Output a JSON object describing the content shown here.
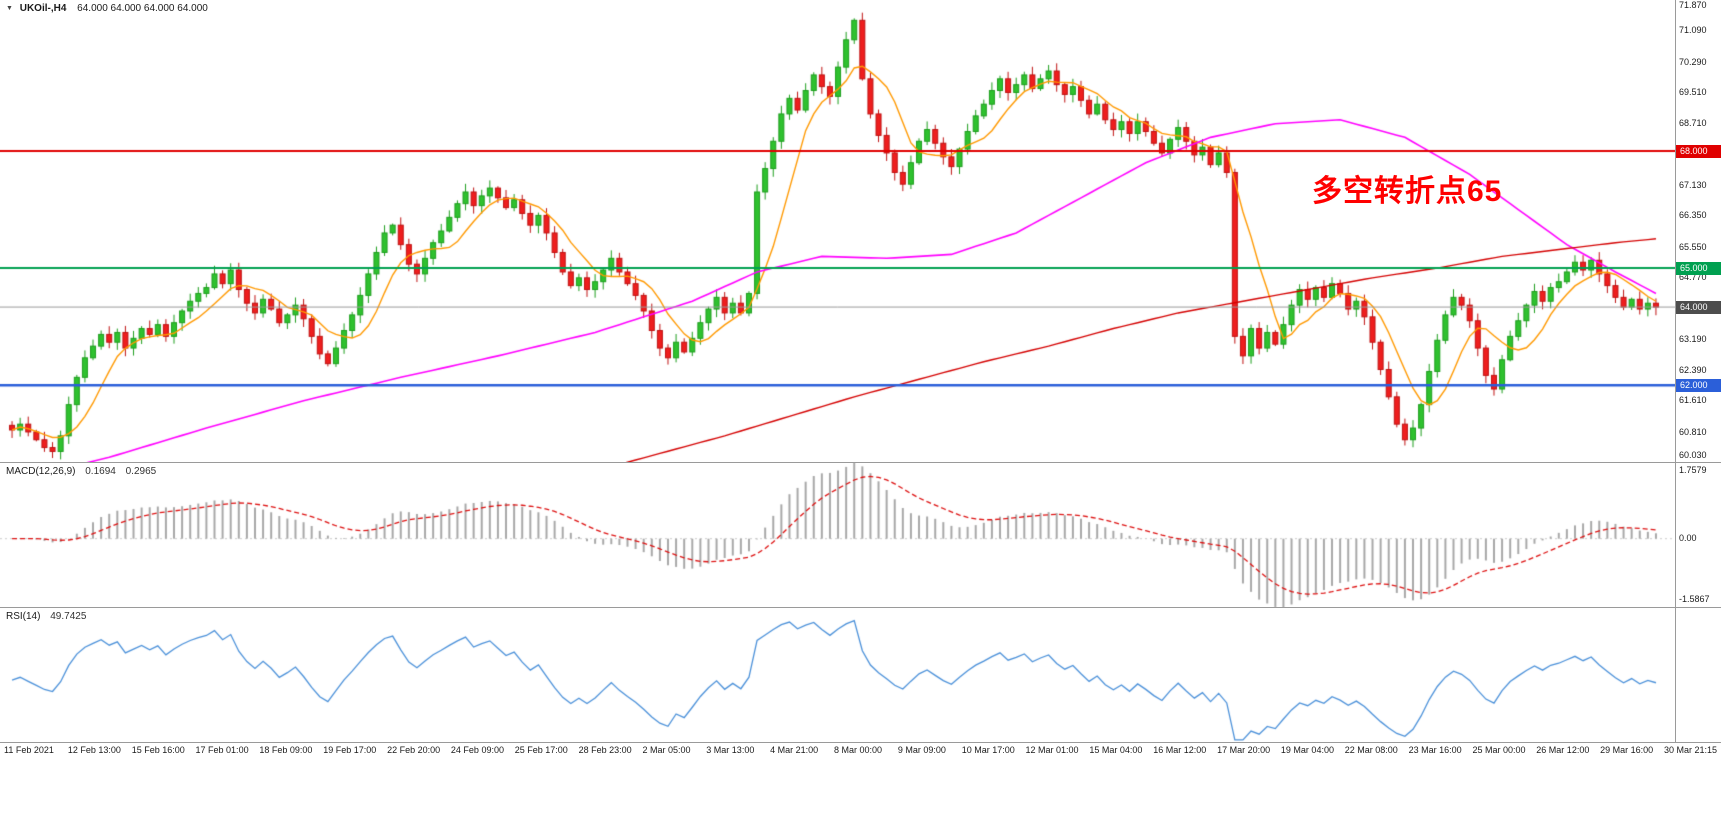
{
  "header": {
    "dropdown_icon": "▼",
    "symbol": "UKOil-,H4",
    "ohlc": "64.000 64.000 64.000 64.000"
  },
  "annotation": {
    "text": "多空转折点65",
    "color": "#ff0000"
  },
  "panes": {
    "macd": {
      "label": "MACD(12,26,9)",
      "value_main": "0.1694",
      "value_signal": "0.2965",
      "axis_top": "1.7579",
      "axis_zero": "0.00",
      "axis_bottom": "-1.5867"
    },
    "rsi": {
      "label": "RSI(14)",
      "value": "49.7425"
    }
  },
  "y_axis": {
    "regular": [
      {
        "text": "71.870",
        "price": 71.87
      },
      {
        "text": "71.090",
        "price": 71.09
      },
      {
        "text": "70.290",
        "price": 70.29
      },
      {
        "text": "69.510",
        "price": 69.51
      },
      {
        "text": "68.710",
        "price": 68.71
      },
      {
        "text": "67.130",
        "price": 67.13
      },
      {
        "text": "66.350",
        "price": 66.35
      },
      {
        "text": "65.550",
        "price": 65.55
      },
      {
        "text": "64.770",
        "price": 64.77
      },
      {
        "text": "63.190",
        "price": 63.19
      },
      {
        "text": "62.390",
        "price": 62.39
      },
      {
        "text": "61.610",
        "price": 61.61
      },
      {
        "text": "60.810",
        "price": 60.81
      },
      {
        "text": "60.030",
        "price": 60.03
      }
    ],
    "chips": [
      {
        "text": "68.000",
        "price": 68.0,
        "bg": "#e00000"
      },
      {
        "text": "65.000",
        "price": 65.0,
        "bg": "#00a050"
      },
      {
        "text": "64.000",
        "price": 64.0,
        "bg": "#4d4d4d"
      },
      {
        "text": "62.000",
        "price": 62.0,
        "bg": "#2b5fd9"
      }
    ]
  },
  "x_axis": {
    "labels": [
      "11 Feb 2021",
      "12 Feb 13:00",
      "15 Feb 16:00",
      "17 Feb 01:00",
      "18 Feb 09:00",
      "19 Feb 17:00",
      "22 Feb 20:00",
      "24 Feb 09:00",
      "25 Feb 17:00",
      "28 Feb 23:00",
      "2 Mar 05:00",
      "3 Mar 13:00",
      "4 Mar 21:00",
      "8 Mar 00:00",
      "9 Mar 09:00",
      "10 Mar 17:00",
      "12 Mar 01:00",
      "15 Mar 04:00",
      "16 Mar 12:00",
      "17 Mar 20:00",
      "19 Mar 04:00",
      "22 Mar 08:00",
      "23 Mar 16:00",
      "25 Mar 00:00",
      "26 Mar 12:00",
      "29 Mar 16:00",
      "30 Mar 21:15"
    ]
  },
  "chart_data": {
    "type": "candlestick",
    "title": "UKOil- H4",
    "y_range": [
      60.03,
      71.87
    ],
    "closes": [
      60.85,
      61.0,
      60.8,
      60.6,
      60.4,
      60.3,
      60.7,
      61.5,
      62.2,
      62.7,
      63.0,
      63.3,
      63.1,
      63.35,
      62.95,
      63.2,
      63.45,
      63.3,
      63.55,
      63.25,
      63.6,
      63.9,
      64.15,
      64.35,
      64.5,
      64.85,
      64.6,
      64.95,
      64.45,
      64.1,
      63.85,
      64.2,
      63.95,
      63.6,
      63.8,
      64.05,
      63.7,
      63.25,
      62.8,
      62.55,
      62.95,
      63.4,
      63.8,
      64.3,
      64.85,
      65.4,
      65.9,
      66.1,
      65.6,
      65.1,
      64.85,
      65.25,
      65.65,
      65.95,
      66.3,
      66.65,
      66.95,
      66.6,
      66.85,
      67.05,
      66.8,
      66.55,
      66.75,
      66.4,
      66.1,
      66.35,
      65.9,
      65.4,
      64.9,
      64.55,
      64.75,
      64.45,
      64.65,
      64.95,
      65.25,
      64.9,
      64.6,
      64.3,
      63.9,
      63.4,
      62.95,
      62.7,
      63.1,
      62.85,
      63.2,
      63.6,
      63.95,
      64.25,
      63.85,
      64.1,
      63.85,
      64.35,
      66.95,
      67.55,
      68.25,
      68.95,
      69.35,
      69.05,
      69.55,
      69.95,
      69.65,
      69.4,
      70.15,
      70.85,
      71.35,
      69.85,
      68.95,
      68.4,
      67.95,
      67.45,
      67.15,
      67.7,
      68.25,
      68.55,
      68.2,
      67.85,
      67.6,
      68.05,
      68.5,
      68.9,
      69.2,
      69.55,
      69.85,
      69.5,
      69.7,
      69.95,
      69.6,
      69.85,
      70.05,
      69.7,
      69.45,
      69.65,
      69.3,
      68.95,
      69.2,
      68.8,
      68.55,
      68.75,
      68.45,
      68.75,
      68.5,
      68.2,
      67.95,
      68.3,
      68.6,
      68.25,
      67.9,
      68.1,
      67.65,
      67.95,
      67.45,
      63.25,
      62.75,
      63.45,
      62.95,
      63.35,
      63.05,
      63.55,
      64.05,
      64.45,
      64.2,
      64.5,
      64.25,
      64.6,
      64.35,
      63.95,
      64.15,
      63.75,
      63.1,
      62.4,
      61.7,
      61.0,
      60.6,
      60.9,
      61.5,
      62.35,
      63.15,
      63.8,
      64.25,
      64.05,
      63.65,
      62.95,
      62.25,
      61.9,
      62.65,
      63.25,
      63.65,
      64.05,
      64.4,
      64.15,
      64.5,
      64.65,
      64.9,
      65.15,
      64.95,
      65.2,
      64.85,
      64.55,
      64.25,
      64.0,
      64.2,
      63.95,
      64.1,
      64.0
    ],
    "candle_up_fill": "#2fc12f",
    "candle_up_border": "#1d9e1d",
    "candle_down_fill": "#ee1e1e",
    "candle_down_border": "#bf1212",
    "levels": [
      {
        "price": 68.0,
        "color": "#e00000",
        "width": 2
      },
      {
        "price": 65.0,
        "color": "#00a050",
        "width": 2
      },
      {
        "price": 62.0,
        "color": "#2b5fd9",
        "width": 2.5
      },
      {
        "price": 64.0,
        "color": "#999999",
        "width": 1
      }
    ],
    "ma_fast": {
      "name": "fast-ma",
      "color": "#ff9900",
      "period": 7,
      "width": 1.4
    },
    "ma_mid": {
      "name": "mid-ma",
      "color": "#ff00ff",
      "width": 1.6,
      "points": [
        [
          0,
          59.55
        ],
        [
          12,
          60.15
        ],
        [
          24,
          60.9
        ],
        [
          36,
          61.6
        ],
        [
          48,
          62.2
        ],
        [
          60,
          62.75
        ],
        [
          72,
          63.35
        ],
        [
          84,
          64.15
        ],
        [
          92,
          64.9
        ],
        [
          100,
          65.3
        ],
        [
          108,
          65.25
        ],
        [
          116,
          65.35
        ],
        [
          124,
          65.9
        ],
        [
          132,
          66.8
        ],
        [
          140,
          67.7
        ],
        [
          148,
          68.35
        ],
        [
          156,
          68.7
        ],
        [
          164,
          68.8
        ],
        [
          172,
          68.35
        ],
        [
          180,
          67.4
        ],
        [
          186,
          66.5
        ],
        [
          192,
          65.6
        ],
        [
          198,
          64.9
        ],
        [
          203,
          64.35
        ]
      ]
    },
    "ma_slow": {
      "name": "slow-ma",
      "color": "#d40000",
      "width": 1.4,
      "points": [
        [
          64,
          59.3
        ],
        [
          72,
          59.8
        ],
        [
          80,
          60.25
        ],
        [
          88,
          60.7
        ],
        [
          96,
          61.2
        ],
        [
          104,
          61.7
        ],
        [
          112,
          62.15
        ],
        [
          120,
          62.6
        ],
        [
          128,
          63.0
        ],
        [
          136,
          63.45
        ],
        [
          144,
          63.85
        ],
        [
          152,
          64.15
        ],
        [
          160,
          64.45
        ],
        [
          168,
          64.75
        ],
        [
          176,
          65.0
        ],
        [
          184,
          65.3
        ],
        [
          192,
          65.5
        ],
        [
          198,
          65.65
        ],
        [
          203,
          65.75
        ]
      ]
    },
    "macd": {
      "fast": 12,
      "slow": 26,
      "signal_period": 9,
      "range": [
        -1.5867,
        1.7579
      ],
      "hist_color": "#a8a8a8",
      "signal_color": "#dd1111",
      "zero_color": "#cccccc"
    },
    "rsi": {
      "period": 14,
      "range": [
        20,
        85
      ],
      "color": "#4a90d9"
    }
  }
}
